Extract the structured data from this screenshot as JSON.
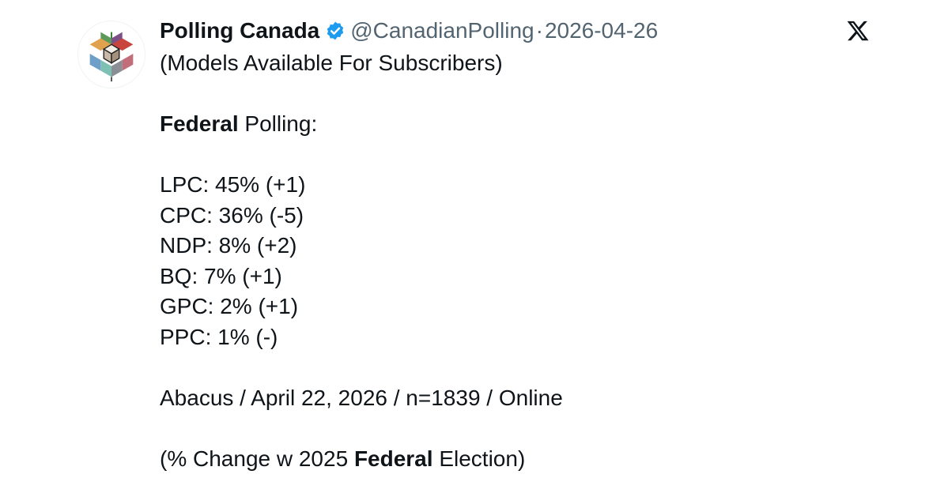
{
  "tweet": {
    "author_name": "Polling Canada",
    "handle": "@CanadianPolling",
    "separator": "·",
    "date": "2026-04-26",
    "lines": {
      "subtitle": "(Models Available For Subscribers)",
      "heading_bold": "Federal",
      "heading_rest": " Polling:",
      "results": [
        "LPC: 45% (+1)",
        "CPC: 36% (-5)",
        "NDP: 8% (+2)",
        "BQ: 7% (+1)",
        "GPC: 2% (+1)",
        "PPC: 1% (-)"
      ],
      "source": "Abacus / April 22, 2026 / n=1839 / Online",
      "footnote_pre": "(% Change w 2025 ",
      "footnote_bold": "Federal",
      "footnote_post": " Election)"
    }
  },
  "icons": {
    "avatar": "polling-canada-logo",
    "verified": "verified-badge-icon",
    "platform": "x-logo-icon"
  },
  "colors": {
    "text": "#0f1419",
    "muted": "#536471",
    "verified": "#1d9bf0"
  }
}
